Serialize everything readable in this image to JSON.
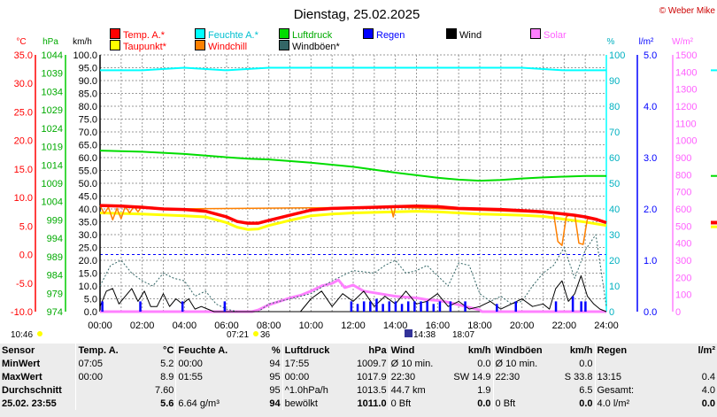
{
  "header": {
    "title": "Dienstag, 25.02.2025",
    "copyright": "© Weber Mike"
  },
  "colors": {
    "temp": "#ff0000",
    "feuchte": "#00ffff",
    "luftdruck": "#00dd00",
    "taupunkt": "#ffff00",
    "windchill": "#ff8000",
    "windboeen": "#336666",
    "regen": "#0000ff",
    "wind": "#000000",
    "solar": "#ff80ff",
    "grid": "#9a9a9a",
    "background": "#ffffff"
  },
  "legend": {
    "temp": "Temp. A.*",
    "feuchte": "Feuchte A.*",
    "luftdruck": "Luftdruck",
    "regen": "Regen",
    "wind": "Wind",
    "solar": "Solar",
    "taupunkt": "Taupunkt*",
    "windchill": "Windchill",
    "windboeen": "Windböen*"
  },
  "chart_data": {
    "type": "line",
    "title": "Dienstag, 25.02.2025",
    "x_ticks": [
      "00:00",
      "02:00",
      "04:00",
      "06:00",
      "08:00",
      "10:00",
      "12:00",
      "14:00",
      "16:00",
      "18:00",
      "20:00",
      "22:00",
      "24:00"
    ],
    "axes": {
      "temp": {
        "unit": "°C",
        "ticks": [
          "35.0",
          "30.0",
          "25.0",
          "20.0",
          "15.0",
          "10.0",
          "5.0",
          "0.0",
          "-5.0",
          "-10.0"
        ],
        "range": [
          -10,
          35
        ]
      },
      "pressure": {
        "unit": "hPa",
        "ticks": [
          "1044",
          "1039",
          "1034",
          "1029",
          "1024",
          "1019",
          "1014",
          "1009",
          "1004",
          "999",
          "994",
          "989",
          "984",
          "979",
          "974"
        ],
        "range": [
          974,
          1044
        ]
      },
      "wind": {
        "unit": "km/h",
        "ticks": [
          "100.0",
          "95.0",
          "90.0",
          "85.0",
          "80.0",
          "75.0",
          "70.0",
          "65.0",
          "60.0",
          "55.0",
          "50.0",
          "45.0",
          "40.0",
          "35.0",
          "30.0",
          "25.0",
          "20.0",
          "15.0",
          "10.0",
          "5.0",
          "0.0"
        ],
        "range": [
          0,
          100
        ]
      },
      "humidity": {
        "unit": "%",
        "ticks": [
          "100",
          "90",
          "80",
          "70",
          "60",
          "50",
          "40",
          "30",
          "20",
          "10",
          "0"
        ],
        "range": [
          0,
          100
        ]
      },
      "rain": {
        "unit": "l/m²",
        "ticks": [
          "5.0",
          "4.0",
          "3.0",
          "2.0",
          "1.0",
          "0.0"
        ],
        "range": [
          0,
          5
        ]
      },
      "solar": {
        "unit": "W/m²",
        "ticks": [
          "1500",
          "1400",
          "1300",
          "1200",
          "1100",
          "1000",
          "900",
          "800",
          "700",
          "600",
          "500",
          "400",
          "300",
          "200",
          "100",
          "0"
        ],
        "range": [
          0,
          1500
        ]
      }
    },
    "series": [
      {
        "name": "Temp. A.*",
        "axis": "temp",
        "color": "#ff0000",
        "x": [
          0,
          1,
          2,
          3,
          4,
          5,
          6,
          6.5,
          7,
          7.5,
          8,
          9,
          10,
          11,
          12,
          13,
          14,
          15,
          16,
          17,
          18,
          19,
          20,
          21,
          22,
          22.5,
          23,
          23.5,
          24
        ],
        "y": [
          8.6,
          8.5,
          8.3,
          8.0,
          7.9,
          7.6,
          6.6,
          5.8,
          5.5,
          5.5,
          6.0,
          6.9,
          7.8,
          8.1,
          8.2,
          8.3,
          8.4,
          8.5,
          8.4,
          8.1,
          8.0,
          7.9,
          7.7,
          7.5,
          7.1,
          6.9,
          6.6,
          6.2,
          5.6
        ]
      },
      {
        "name": "Taupunkt*",
        "axis": "temp",
        "color": "#ffff00",
        "x": [
          0,
          2,
          4,
          5,
          6,
          6.5,
          7,
          7.5,
          8,
          9,
          10,
          11,
          12,
          13,
          14,
          15,
          16,
          17,
          18,
          19,
          20,
          21,
          22,
          23,
          24
        ],
        "y": [
          7.3,
          7.1,
          6.8,
          6.6,
          5.6,
          4.8,
          4.4,
          4.5,
          5.1,
          6.0,
          6.8,
          7.1,
          7.3,
          7.4,
          7.5,
          7.6,
          7.5,
          7.3,
          7.1,
          7.0,
          6.9,
          6.7,
          6.2,
          5.7,
          5.1
        ]
      },
      {
        "name": "Windchill",
        "axis": "temp",
        "color": "#ff8000",
        "x": [
          0,
          0.2,
          0.4,
          0.6,
          0.8,
          1.0,
          1.2,
          1.4,
          1.6,
          1.8,
          2.0,
          2.2,
          2.5,
          3,
          13.7,
          13.8,
          13.9,
          14.0,
          14.1,
          21.5,
          21.7,
          21.9,
          22.1,
          22.3,
          22.5,
          22.7,
          22.9,
          23.1,
          23.3,
          23.5
        ],
        "y": [
          8.6,
          7.2,
          8.3,
          6.1,
          8.1,
          6.3,
          8.5,
          7.3,
          8.4,
          7.5,
          8.5,
          8.3,
          8.3,
          8.0,
          8.3,
          8.2,
          6.6,
          8.3,
          8.3,
          7.3,
          2.3,
          1.6,
          6.6,
          7.1,
          7.0,
          2.0,
          1.8,
          6.3,
          6.2,
          6.0
        ]
      },
      {
        "name": "Feuchte A.*",
        "axis": "humidity",
        "color": "#00ffff",
        "x": [
          0,
          2,
          4,
          6,
          8,
          10,
          12,
          14,
          16,
          18,
          20,
          22,
          24
        ],
        "y": [
          94,
          94,
          95,
          94,
          95,
          95,
          95,
          95,
          95,
          95,
          95,
          94,
          94
        ]
      },
      {
        "name": "Luftdruck",
        "axis": "pressure",
        "color": "#00dd00",
        "x": [
          0,
          2,
          4,
          6,
          7,
          8,
          10,
          12,
          14,
          16,
          17,
          18,
          19,
          20,
          21,
          22,
          23,
          24
        ],
        "y": [
          1017.9,
          1017.6,
          1017.0,
          1016.1,
          1015.7,
          1015.5,
          1014.6,
          1013.5,
          1011.9,
          1010.5,
          1010.0,
          1009.7,
          1009.9,
          1010.3,
          1010.6,
          1010.8,
          1011.0,
          1011.0
        ]
      },
      {
        "name": "Windböen*",
        "axis": "wind",
        "color": "#336666",
        "x": [
          0,
          0.5,
          1,
          1.5,
          2,
          2.5,
          3,
          3.5,
          4,
          4.5,
          5,
          5.5,
          6,
          6.5,
          7,
          7.5,
          8,
          9,
          10,
          11,
          12,
          13,
          13.5,
          14,
          14.5,
          15,
          15.5,
          16,
          16.5,
          17,
          17.5,
          18,
          18.5,
          19,
          19.5,
          20,
          20.5,
          21,
          21.5,
          22,
          22.5,
          23,
          23.5,
          24
        ],
        "y": [
          10,
          18,
          20,
          15,
          12,
          10,
          15,
          13,
          12,
          6,
          8,
          3,
          1,
          0,
          0,
          0,
          3,
          5,
          7,
          12,
          16,
          15,
          18,
          20,
          15,
          16,
          18,
          14,
          10,
          19,
          18,
          7,
          4,
          6,
          3,
          4,
          10,
          15,
          18,
          25,
          13,
          24,
          30,
          2
        ]
      },
      {
        "name": "Wind",
        "axis": "wind",
        "color": "#000000",
        "x": [
          0,
          0.3,
          0.6,
          0.9,
          1.2,
          1.5,
          1.8,
          2.1,
          2.4,
          2.7,
          3.0,
          3.3,
          3.6,
          3.9,
          4.2,
          4.5,
          4.8,
          5.1,
          5.4,
          6,
          9.5,
          10,
          10.5,
          11,
          11.5,
          12,
          12.5,
          13,
          13.5,
          14,
          14.5,
          15,
          15.5,
          16,
          16.5,
          17,
          17.5,
          18,
          18.5,
          19,
          19.5,
          20,
          20.5,
          21,
          21.3,
          21.6,
          21.9,
          22.2,
          22.5,
          22.8,
          23.1,
          23.4,
          23.7,
          24
        ],
        "y": [
          2,
          8,
          9,
          3,
          6,
          9,
          4,
          8,
          2,
          2,
          7,
          2,
          5,
          3,
          5,
          1,
          2,
          1,
          0,
          0,
          0,
          5,
          8,
          2,
          7,
          4,
          8,
          2,
          6,
          3,
          8,
          3,
          4,
          7,
          2,
          4,
          1,
          2,
          4,
          1,
          3,
          5,
          2,
          3,
          1,
          9,
          12,
          4,
          7,
          14,
          6,
          3,
          1,
          0
        ]
      },
      {
        "name": "Solar",
        "axis": "solar",
        "color": "#ff80ff",
        "x": [
          0,
          7.2,
          7.5,
          8,
          8.5,
          9,
          9.5,
          10,
          10.5,
          11,
          11.3,
          11.6,
          12,
          12.5,
          13,
          13.5,
          14,
          14.5,
          15,
          15.5,
          16,
          16.5,
          17,
          17.5,
          18,
          18.1,
          24
        ],
        "y": [
          0,
          0,
          10,
          40,
          60,
          80,
          95,
          120,
          150,
          165,
          185,
          140,
          155,
          120,
          110,
          100,
          90,
          85,
          80,
          70,
          65,
          55,
          40,
          25,
          10,
          0,
          0
        ]
      },
      {
        "name": "Regen",
        "axis": "rain",
        "color": "#0000ff",
        "type": "bar",
        "x": [
          0.1,
          1.9,
          3.9,
          5.9,
          11.9,
          12.2,
          12.5,
          12.8,
          13.1,
          13.4,
          13.7,
          14.0,
          14.3,
          14.6,
          14.9,
          15.2,
          15.5,
          15.8,
          16.1,
          16.6,
          17.3,
          18.8,
          19.7,
          21.6,
          22.4,
          22.8,
          23.0
        ],
        "y": [
          0.2,
          0.2,
          0.2,
          0.2,
          0.2,
          0.15,
          0.2,
          0.2,
          0.25,
          0.15,
          0.2,
          0.2,
          0.15,
          0.2,
          0.2,
          0.2,
          0.2,
          0.15,
          0.2,
          0.2,
          0.2,
          0.15,
          0.2,
          0.2,
          0.3,
          0.2,
          0.2
        ]
      }
    ]
  },
  "sun_times": {
    "sunrise": "07:21",
    "sunset": "18:07",
    "moonrise": "10:46",
    "moon_mid": "14:38",
    "moon_suffix": "36"
  },
  "stats": {
    "header": {
      "c1": "Sensor",
      "c2": "Temp. A.",
      "c2u": "°C",
      "c3": "Feuchte A.",
      "c3u": "%",
      "c4": "Luftdruck",
      "c4u": "hPa",
      "c5": "Wind",
      "c5u": "km/h",
      "c6": "Windböen",
      "c6u": "km/h",
      "c7": "Regen",
      "c7u": "l/m²"
    },
    "min": {
      "label": "MinWert",
      "temp_t": "07:05",
      "temp_v": "5.2",
      "hum_t": "00:00",
      "hum_v": "94",
      "pres_t": "17:55",
      "pres_v": "1009.7",
      "wind_t": "Ø 10 min.",
      "wind_v": "0.0",
      "gust_t": "Ø 10 min.",
      "gust_v": "0.0",
      "rain_t": "",
      "rain_v": ""
    },
    "max": {
      "label": "MaxWert",
      "temp_t": "00:00",
      "temp_v": "8.9",
      "hum_t": "01:55",
      "hum_v": "95",
      "pres_t": "00:00",
      "pres_v": "1017.9",
      "wind_t": "22:30",
      "wind_d": "SW 14.9",
      "gust_t": "22:30",
      "gust_d": "S 33.8",
      "rain_t": "13:15",
      "rain_v": "0.4"
    },
    "avg": {
      "label": "Durchschnitt",
      "temp_v": "7.60",
      "hum_v": "95",
      "pres_t": "^1.0hPa/h",
      "pres_v": "1013.5",
      "wind_t": "44.7 km",
      "wind_v": "1.9",
      "gust_v": "6.5",
      "rain_t": "Gesamt:",
      "rain_v": "4.0"
    },
    "current": {
      "label": "25.02. 23:55",
      "temp_v": "5.6",
      "hum_t": "6.64 g/m³",
      "hum_v": "94",
      "pres_t": "bewölkt",
      "pres_v": "1011.0",
      "wind_t": "0 Bft",
      "wind_v": "0.0",
      "gust_t": "0 Bft",
      "gust_v": "0.0",
      "rain_t": "4.0 l/m²",
      "rain_v": "0.0"
    }
  }
}
